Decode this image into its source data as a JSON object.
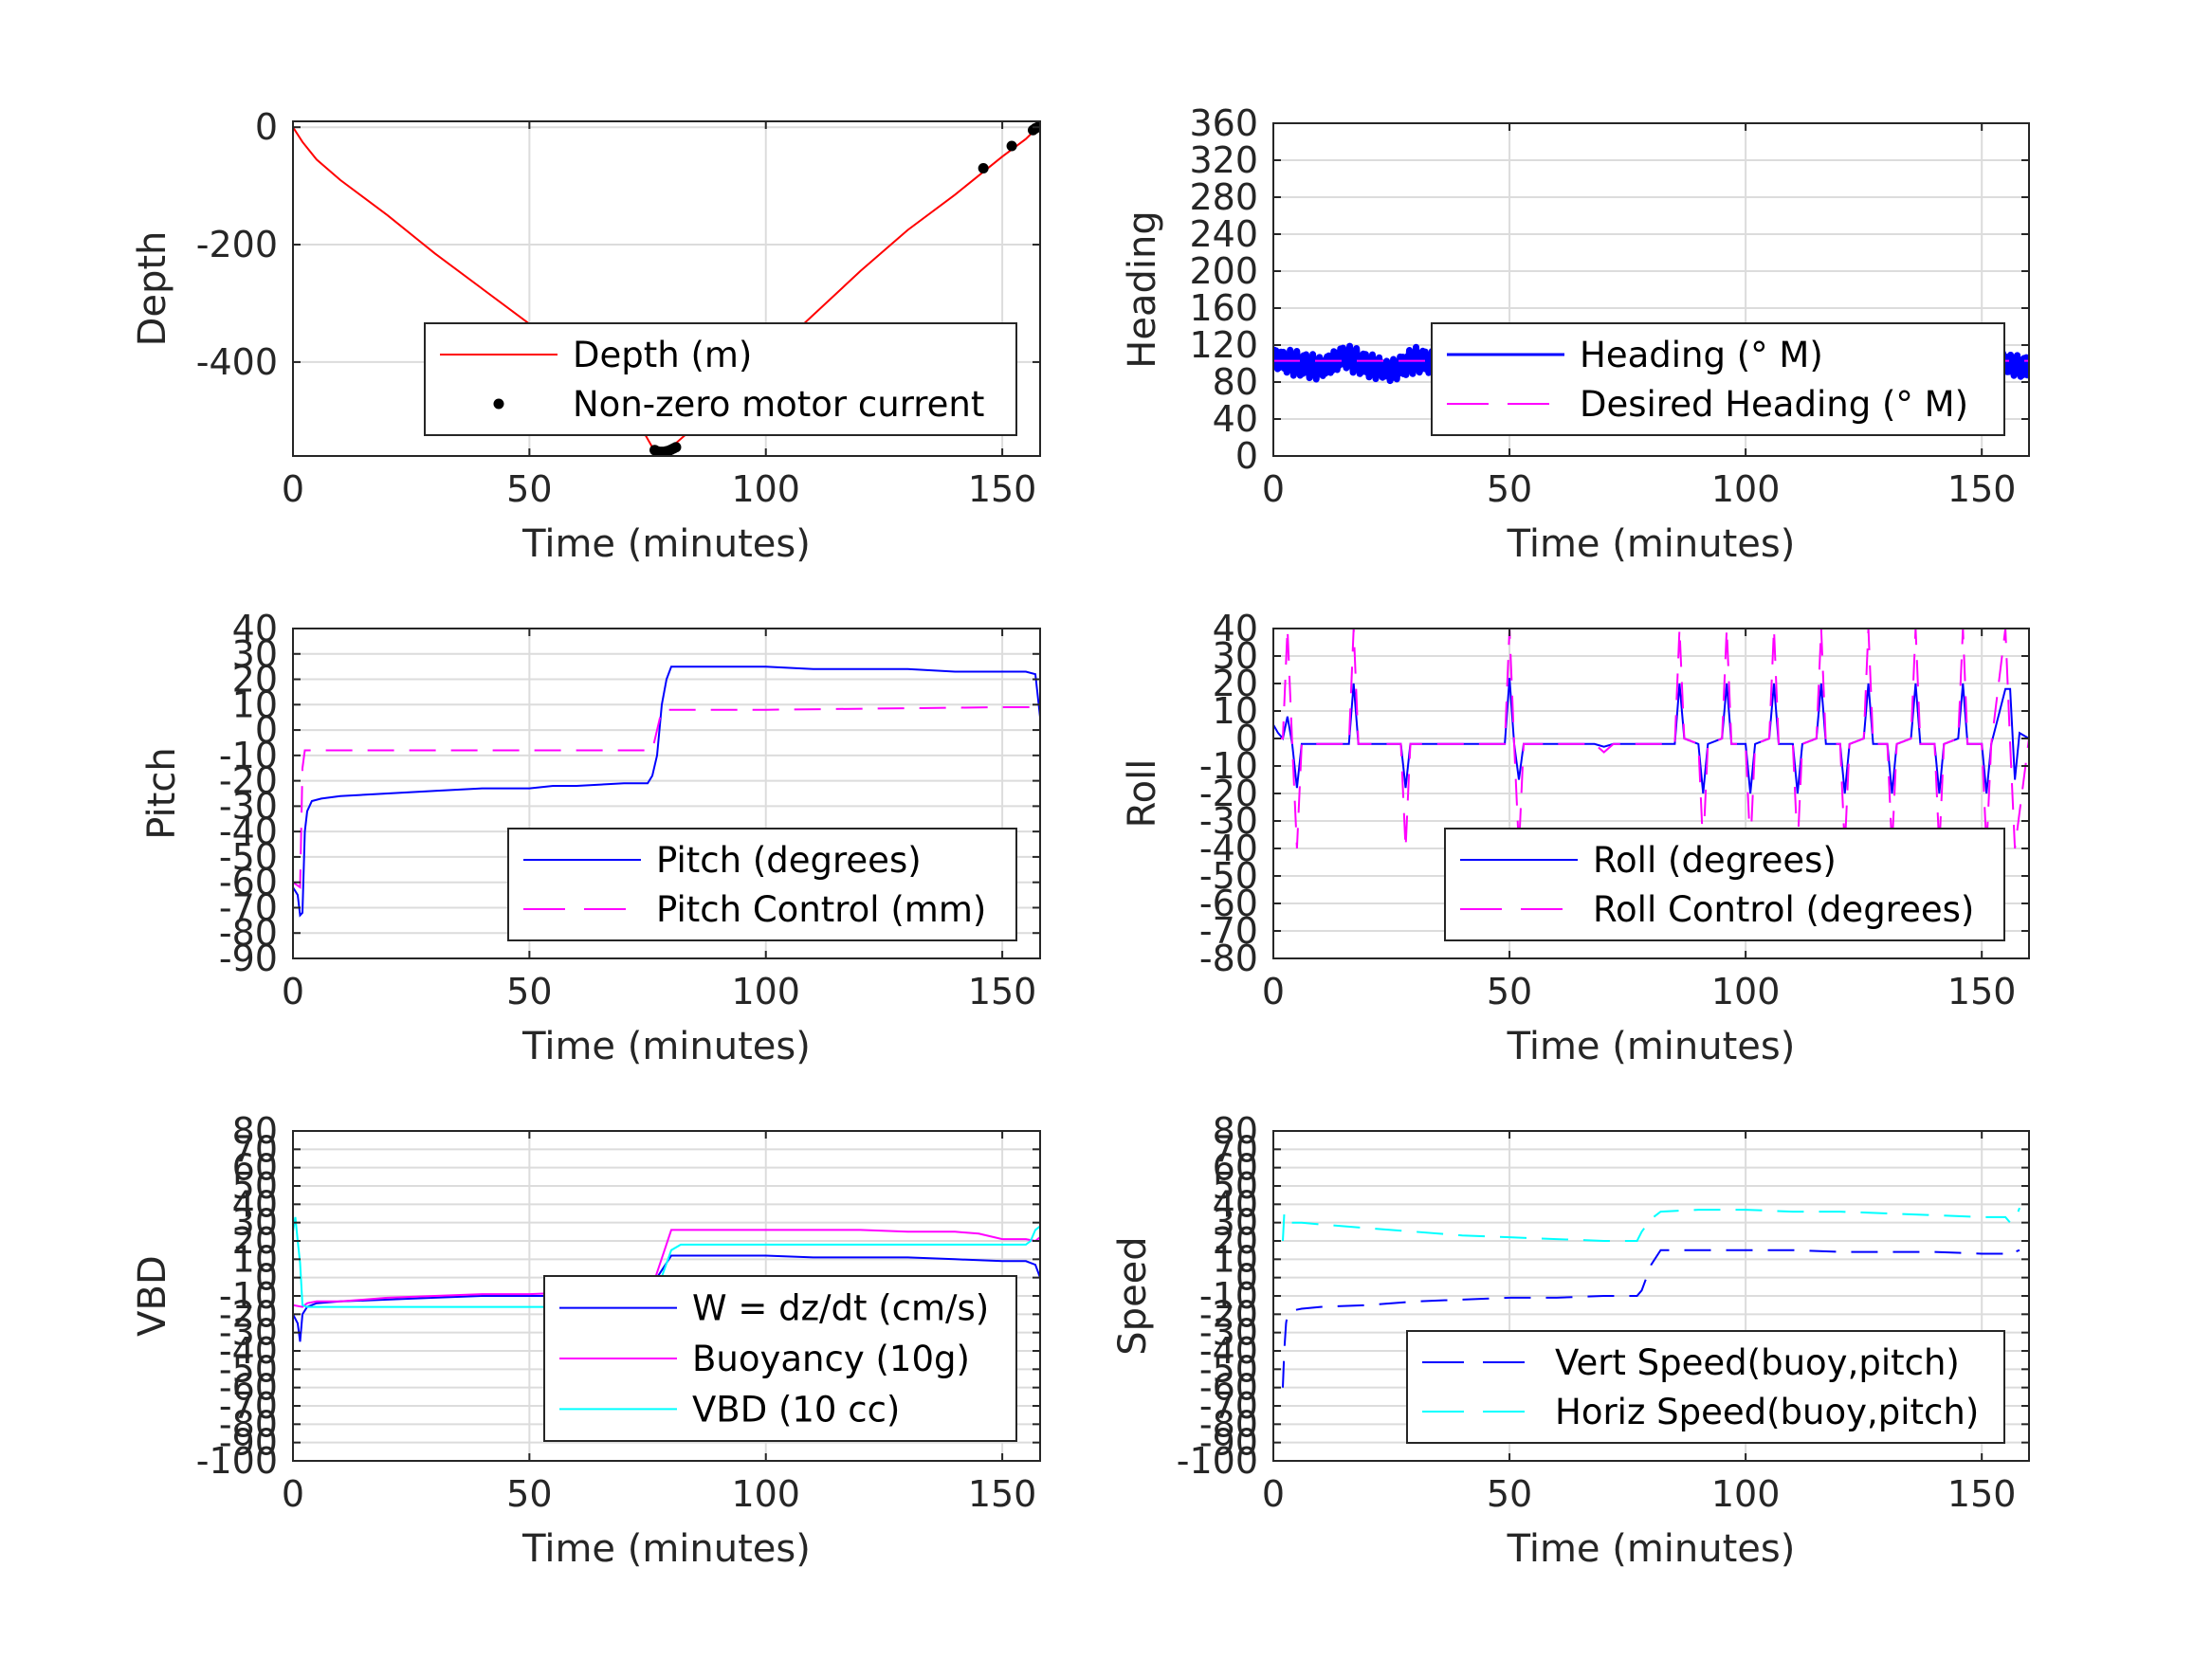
{
  "chart_data": [
    {
      "id": "depth",
      "type": "line",
      "xlabel": "Time (minutes)",
      "ylabel": "Depth",
      "xlim": [
        0,
        158
      ],
      "ylim": [
        -560,
        10
      ],
      "xticks": [
        0,
        50,
        100,
        150
      ],
      "yticks": [
        0,
        -200,
        -400
      ],
      "grid": true,
      "legend_position": "bottom-right",
      "series": [
        {
          "name": "Depth (m)",
          "style": "solid",
          "color": "#ff0000",
          "x": [
            0,
            2,
            5,
            10,
            20,
            30,
            40,
            50,
            60,
            70,
            76,
            78,
            80,
            85,
            90,
            100,
            110,
            120,
            130,
            140,
            150,
            155,
            157.5
          ],
          "y": [
            0,
            -25,
            -55,
            -90,
            -150,
            -215,
            -275,
            -335,
            -395,
            -460,
            -545,
            -553,
            -545,
            -510,
            -470,
            -395,
            -320,
            -245,
            -175,
            -115,
            -50,
            -20,
            0
          ]
        },
        {
          "name": "Non-zero motor current",
          "style": "dots",
          "color": "#000000",
          "x": [
            76.5,
            77,
            77.5,
            78,
            78.5,
            79,
            79.5,
            80,
            80.5,
            81,
            146,
            152,
            156.5,
            157,
            157.5
          ],
          "y": [
            -550,
            -552,
            -553,
            -553,
            -553,
            -552,
            -551,
            -549,
            -547,
            -545,
            -70,
            -32,
            -5,
            -2,
            0
          ]
        }
      ]
    },
    {
      "id": "heading",
      "type": "line",
      "xlabel": "Time (minutes)",
      "ylabel": "Heading",
      "xlim": [
        0,
        160
      ],
      "ylim": [
        0,
        360
      ],
      "xticks": [
        0,
        50,
        100,
        150
      ],
      "yticks": [
        0,
        40,
        80,
        120,
        160,
        200,
        240,
        280,
        320,
        360
      ],
      "grid": true,
      "legend_position": "center-right",
      "series": [
        {
          "name": "Heading (° M)",
          "style": "thick-noisy",
          "color": "#0000ff",
          "x": [
            0,
            5,
            10,
            15,
            20,
            25,
            30,
            35,
            40,
            45,
            50,
            55,
            60,
            65,
            70,
            75,
            80,
            85,
            90,
            95,
            100,
            105,
            110,
            115,
            120,
            125,
            130,
            135,
            140,
            145,
            150,
            155,
            160
          ],
          "y": [
            105,
            100,
            95,
            108,
            98,
            92,
            104,
            100,
            108,
            112,
            115,
            100,
            98,
            106,
            104,
            108,
            125,
            96,
            110,
            92,
            112,
            98,
            108,
            95,
            110,
            100,
            106,
            96,
            110,
            98,
            108,
            100,
            95
          ]
        },
        {
          "name": "Desired Heading (° M)",
          "style": "dashed",
          "color": "#ff00ff",
          "x": [
            0,
            160
          ],
          "y": [
            103,
            103
          ]
        }
      ]
    },
    {
      "id": "pitch",
      "type": "line",
      "xlabel": "Time (minutes)",
      "ylabel": "Pitch",
      "xlim": [
        0,
        158
      ],
      "ylim": [
        -90,
        40
      ],
      "xticks": [
        0,
        50,
        100,
        150
      ],
      "yticks": [
        40,
        30,
        20,
        10,
        0,
        -10,
        -20,
        -30,
        -40,
        -50,
        -60,
        -70,
        -80,
        -90
      ],
      "grid": true,
      "legend_position": "bottom-right",
      "series": [
        {
          "name": "Pitch (degrees)",
          "style": "solid",
          "color": "#0000ff",
          "x": [
            0,
            1,
            1.5,
            2,
            2.5,
            3,
            4,
            6,
            10,
            20,
            30,
            40,
            50,
            55,
            60,
            70,
            75,
            76,
            77,
            78,
            79,
            80,
            90,
            100,
            110,
            120,
            130,
            140,
            150,
            155,
            157,
            158
          ],
          "y": [
            -62,
            -65,
            -73,
            -72,
            -40,
            -32,
            -28,
            -27,
            -26,
            -25,
            -24,
            -23,
            -23,
            -22,
            -22,
            -21,
            -21,
            -18,
            -10,
            10,
            20,
            25,
            25,
            25,
            24,
            24,
            24,
            23,
            23,
            23,
            22,
            5
          ]
        },
        {
          "name": "Pitch Control (mm)",
          "style": "dashed",
          "color": "#ff00ff",
          "x": [
            0,
            1.5,
            2,
            2.5,
            3,
            4,
            10,
            76,
            77,
            78,
            80,
            81,
            100,
            150,
            158
          ],
          "y": [
            -60,
            -62,
            -15,
            -8,
            -8,
            -8,
            -8,
            -8,
            0,
            8,
            8,
            8,
            8,
            9,
            9
          ]
        }
      ]
    },
    {
      "id": "roll",
      "type": "line",
      "xlabel": "Time (minutes)",
      "ylabel": "Roll",
      "xlim": [
        0,
        160
      ],
      "ylim": [
        -80,
        40
      ],
      "xticks": [
        0,
        50,
        100,
        150
      ],
      "yticks": [
        40,
        30,
        20,
        10,
        0,
        -10,
        -20,
        -30,
        -40,
        -50,
        -60,
        -70,
        -80
      ],
      "grid": true,
      "legend_position": "bottom-right",
      "series": [
        {
          "name": "Roll (degrees)",
          "style": "solid",
          "color": "#0000ff",
          "x": [
            0,
            1,
            2,
            3,
            4,
            5,
            6,
            8,
            16,
            17,
            18,
            19,
            27,
            28,
            29,
            49,
            50,
            51,
            52,
            53,
            54,
            68,
            70,
            72,
            75,
            80,
            85,
            86,
            87,
            90,
            91,
            92,
            95,
            96,
            97,
            100,
            101,
            102,
            105,
            106,
            107,
            110,
            111,
            112,
            115,
            116,
            117,
            120,
            121,
            122,
            125,
            126,
            127,
            130,
            131,
            132,
            135,
            136,
            137,
            140,
            141,
            142,
            145,
            146,
            147,
            150,
            151,
            152,
            155,
            156,
            157,
            158,
            160
          ],
          "y": [
            5,
            2,
            0,
            8,
            -2,
            -18,
            -2,
            -2,
            -2,
            20,
            -2,
            -2,
            -2,
            -18,
            -2,
            -2,
            22,
            -2,
            -15,
            -2,
            -2,
            -2,
            -3,
            -2,
            -2,
            -2,
            -2,
            20,
            0,
            -2,
            -20,
            -2,
            0,
            20,
            -2,
            -2,
            -20,
            -2,
            0,
            20,
            -2,
            -2,
            -20,
            -2,
            0,
            20,
            -2,
            -2,
            -20,
            -2,
            0,
            20,
            -2,
            -2,
            -20,
            -2,
            0,
            20,
            -2,
            -2,
            -20,
            -2,
            0,
            20,
            -2,
            -2,
            -20,
            -2,
            18,
            18,
            -15,
            2,
            0
          ]
        },
        {
          "name": "Roll Control (degrees)",
          "style": "dashed",
          "color": "#ff00ff",
          "x": [
            0,
            1,
            2,
            3,
            4,
            5,
            6,
            8,
            16,
            17,
            18,
            19,
            27,
            28,
            29,
            49,
            50,
            51,
            52,
            53,
            54,
            68,
            70,
            72,
            75,
            80,
            85,
            86,
            87,
            90,
            91,
            92,
            95,
            96,
            97,
            100,
            101,
            102,
            105,
            106,
            107,
            110,
            111,
            112,
            115,
            116,
            117,
            120,
            121,
            122,
            125,
            126,
            127,
            130,
            131,
            132,
            135,
            136,
            137,
            140,
            141,
            142,
            145,
            146,
            147,
            150,
            151,
            152,
            155,
            156,
            157,
            160
          ],
          "y": [
            0,
            0,
            0,
            40,
            -2,
            -40,
            -2,
            -2,
            -2,
            40,
            -2,
            -2,
            -2,
            -40,
            -2,
            -2,
            40,
            -2,
            -40,
            -2,
            -2,
            -2,
            -5,
            -2,
            -2,
            -2,
            -2,
            40,
            0,
            -2,
            -40,
            -2,
            0,
            40,
            -2,
            -2,
            -40,
            -2,
            0,
            40,
            -2,
            -2,
            -40,
            -2,
            0,
            40,
            -2,
            -2,
            -40,
            -2,
            0,
            40,
            -2,
            -2,
            -40,
            -2,
            0,
            40,
            -2,
            -2,
            -40,
            -2,
            0,
            40,
            -2,
            -2,
            -40,
            -2,
            40,
            -2,
            -40,
            0
          ]
        }
      ]
    },
    {
      "id": "vbd",
      "type": "line",
      "xlabel": "Time (minutes)",
      "ylabel": "VBD",
      "xlim": [
        0,
        158
      ],
      "ylim": [
        -100,
        80
      ],
      "xticks": [
        0,
        50,
        100,
        150
      ],
      "yticks": [
        80,
        70,
        60,
        50,
        40,
        30,
        20,
        10,
        0,
        -10,
        -20,
        -30,
        -40,
        -50,
        -60,
        -70,
        -80,
        -90,
        -100
      ],
      "ytick_labels": [
        "80",
        "70",
        "60",
        "50",
        "40",
        "30",
        "20",
        "10",
        "0",
        "-10",
        "-20",
        "-30",
        "-40",
        "-50",
        "-60",
        "-70",
        "-80",
        "-90",
        "-100"
      ],
      "grid": true,
      "legend_position": "bottom-right",
      "series": [
        {
          "name": "W = dz/dt (cm/s)",
          "style": "solid",
          "color": "#0000ff",
          "x": [
            0,
            1,
            1.5,
            2,
            3,
            5,
            10,
            20,
            30,
            40,
            50,
            60,
            70,
            75,
            77,
            80,
            90,
            100,
            110,
            120,
            130,
            140,
            150,
            155,
            157,
            158
          ],
          "y": [
            -20,
            -25,
            -35,
            -20,
            -16,
            -14,
            -13,
            -12,
            -11,
            -10,
            -10,
            -10,
            -9,
            -9,
            0,
            12,
            12,
            12,
            11,
            11,
            11,
            10,
            9,
            9,
            7,
            0
          ]
        },
        {
          "name": "Buoyancy (10g)",
          "style": "solid",
          "color": "#ff00ff",
          "x": [
            0,
            2,
            3,
            5,
            10,
            20,
            30,
            40,
            50,
            60,
            70,
            75,
            76,
            80,
            90,
            100,
            110,
            120,
            130,
            140,
            145,
            150,
            155,
            157,
            158
          ],
          "y": [
            -15,
            -16,
            -14,
            -13,
            -13,
            -11,
            -10,
            -9,
            -9,
            -8,
            -8,
            -8,
            -5,
            26,
            26,
            26,
            26,
            26,
            25,
            25,
            24,
            21,
            21,
            20,
            22
          ]
        },
        {
          "name": "VBD (10 cc)",
          "style": "solid",
          "color": "#00ffff",
          "x": [
            0,
            0.5,
            1,
            1.5,
            2,
            3,
            5,
            10,
            20,
            30,
            40,
            50,
            60,
            70,
            75,
            76,
            80,
            82,
            90,
            100,
            110,
            120,
            130,
            140,
            150,
            155,
            156,
            157,
            158
          ],
          "y": [
            25,
            33,
            20,
            8,
            -15,
            -16,
            -16,
            -16,
            -16,
            -16,
            -16,
            -16,
            -16,
            -16,
            -16,
            -14,
            15,
            18,
            18,
            18,
            18,
            18,
            18,
            18,
            18,
            18,
            20,
            26,
            28
          ]
        }
      ]
    },
    {
      "id": "speed",
      "type": "line",
      "xlabel": "Time (minutes)",
      "ylabel": "Speed",
      "xlim": [
        0,
        160
      ],
      "ylim": [
        -100,
        80
      ],
      "xticks": [
        0,
        50,
        100,
        150
      ],
      "yticks": [
        80,
        70,
        60,
        50,
        40,
        30,
        20,
        10,
        0,
        -10,
        -20,
        -30,
        -40,
        -50,
        -60,
        -70,
        -80,
        -90,
        -100
      ],
      "ytick_labels": [
        "80",
        "70",
        "60",
        "50",
        "40",
        "30",
        "20",
        "10",
        "0",
        "-10",
        "-20",
        "-30",
        "-40",
        "-50",
        "-60",
        "-70",
        "-80",
        "-90",
        "-100"
      ],
      "grid": true,
      "legend_position": "bottom-right",
      "series": [
        {
          "name": "Vert Speed(buoy,pitch)",
          "style": "dashed",
          "color": "#0000ff",
          "x": [
            2,
            2.3,
            2.7,
            3,
            4,
            6,
            10,
            20,
            30,
            40,
            50,
            60,
            70,
            75,
            77,
            78,
            80,
            82,
            90,
            100,
            110,
            120,
            130,
            140,
            150,
            155,
            156,
            157,
            158
          ],
          "y": [
            -60,
            -40,
            -25,
            -20,
            -18,
            -17,
            -16,
            -15,
            -13,
            -12,
            -11,
            -11,
            -10,
            -10,
            -10,
            -7,
            7,
            15,
            15,
            15,
            15,
            14,
            14,
            14,
            13,
            13,
            12,
            14,
            15
          ]
        },
        {
          "name": "Horiz Speed(buoy,pitch)",
          "style": "dashed",
          "color": "#00ffff",
          "x": [
            2,
            2.3,
            2.7,
            3,
            4,
            6,
            10,
            20,
            30,
            40,
            50,
            60,
            70,
            75,
            77,
            78,
            80,
            82,
            90,
            100,
            110,
            120,
            130,
            140,
            150,
            155,
            156,
            157,
            158
          ],
          "y": [
            20,
            35,
            32,
            30,
            30,
            30,
            29,
            27,
            25,
            23,
            22,
            21,
            20,
            20,
            20,
            25,
            32,
            36,
            37,
            37,
            36,
            36,
            35,
            34,
            33,
            33,
            30,
            31,
            38
          ]
        }
      ]
    }
  ]
}
